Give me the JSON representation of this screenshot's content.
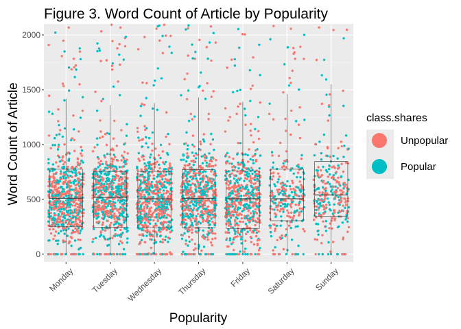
{
  "chart_data": {
    "type": "scatter",
    "title": "Figure 3. Word Count of Article by Popularity",
    "xlabel": "Popularity",
    "ylabel": "Word Count of Article",
    "categories": [
      "Monday",
      "Tuesday",
      "Wednesday",
      "Thursday",
      "Friday",
      "Saturday",
      "Sunday"
    ],
    "ylim": [
      -70,
      2100
    ],
    "yticks": [
      0,
      500,
      1000,
      1500,
      2000
    ],
    "grid": true,
    "background": "#EBEBEB",
    "overlay": "boxplot",
    "legend": {
      "title": "class.shares",
      "position": "right",
      "entries": [
        {
          "label": "Unpopular",
          "color": "#F8766D"
        },
        {
          "label": "Popular",
          "color": "#00BFC4"
        }
      ]
    },
    "series": [
      {
        "name": "Unpopular",
        "color": "#F8766D"
      },
      {
        "name": "Popular",
        "color": "#00BFC4"
      }
    ],
    "boxplots": [
      {
        "category": "Monday",
        "min": 0,
        "q1": 250,
        "median": 510,
        "q3": 775,
        "max": 1420
      },
      {
        "category": "Tuesday",
        "min": 0,
        "q1": 245,
        "median": 520,
        "q3": 755,
        "max": 1360
      },
      {
        "category": "Wednesday",
        "min": 0,
        "q1": 240,
        "median": 505,
        "q3": 755,
        "max": 1380
      },
      {
        "category": "Thursday",
        "min": 0,
        "q1": 240,
        "median": 510,
        "q3": 770,
        "max": 1430
      },
      {
        "category": "Friday",
        "min": 0,
        "q1": 235,
        "median": 505,
        "q3": 760,
        "max": 1390
      },
      {
        "category": "Saturday",
        "min": 0,
        "q1": 305,
        "median": 505,
        "q3": 775,
        "max": 1460
      },
      {
        "category": "Sunday",
        "min": 0,
        "q1": 345,
        "median": 540,
        "q3": 845,
        "max": 1550
      }
    ],
    "points_per_category": [
      700,
      700,
      700,
      700,
      600,
      300,
      300
    ]
  }
}
